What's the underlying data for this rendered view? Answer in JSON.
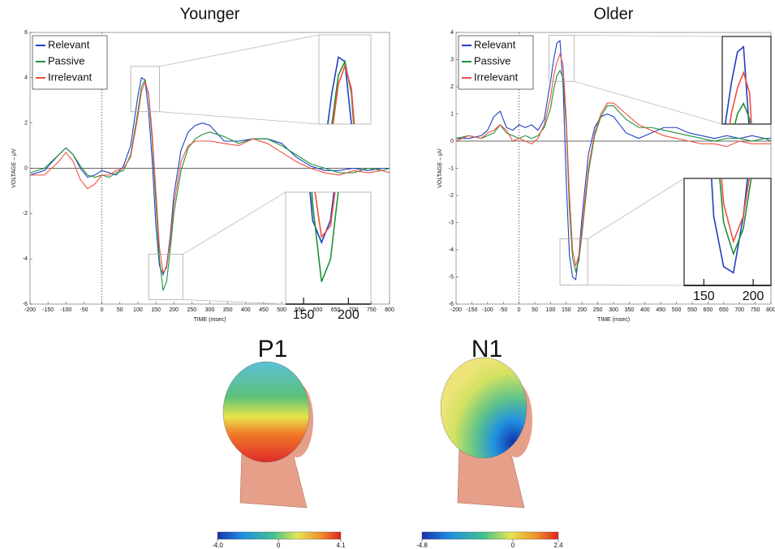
{
  "chart_data": [
    {
      "type": "line",
      "title": "Younger",
      "x_label": "TIME (msec)",
      "y_label": "VOLTAGE – μV",
      "x": [
        -200,
        -160,
        -120,
        -100,
        -80,
        -60,
        -40,
        -20,
        0,
        20,
        40,
        60,
        80,
        100,
        110,
        120,
        130,
        140,
        150,
        160,
        170,
        180,
        190,
        200,
        220,
        240,
        260,
        280,
        300,
        340,
        380,
        420,
        460,
        500,
        540,
        580,
        620,
        660,
        700,
        740,
        780,
        800
      ],
      "series": [
        {
          "name": "Relevant",
          "color": "#2040c0",
          "values": [
            -0.3,
            -0.1,
            0.6,
            0.9,
            0.6,
            0,
            -0.4,
            -0.3,
            -0.1,
            -0.2,
            -0.3,
            0.1,
            1.0,
            3.2,
            4.0,
            3.9,
            2.5,
            0.3,
            -2.5,
            -4.3,
            -4.7,
            -4.3,
            -3.0,
            -1.2,
            0.8,
            1.6,
            1.9,
            2.0,
            1.9,
            1.2,
            1.2,
            1.3,
            1.3,
            1.1,
            0.5,
            0.1,
            -0.1,
            -0.1,
            0.0,
            -0.1,
            0.0,
            0.0
          ]
        },
        {
          "name": "Passive",
          "color": "#20903a",
          "values": [
            -0.2,
            0,
            0.6,
            0.9,
            0.6,
            0.1,
            -0.3,
            -0.4,
            -0.3,
            -0.4,
            -0.2,
            -0.1,
            0.6,
            2.5,
            3.6,
            3.9,
            3.2,
            1.2,
            -1.5,
            -4.0,
            -5.4,
            -5.0,
            -3.6,
            -2.0,
            -0.1,
            0.9,
            1.3,
            1.5,
            1.6,
            1.4,
            1.1,
            1.3,
            1.3,
            1.0,
            0.6,
            0.2,
            0,
            -0.2,
            -0.2,
            0,
            -0.1,
            0
          ]
        },
        {
          "name": "Irrelevant",
          "color": "#f05040",
          "values": [
            -0.3,
            -0.3,
            0.3,
            0.7,
            0.3,
            -0.5,
            -0.9,
            -0.7,
            -0.3,
            -0.3,
            -0.1,
            0,
            0.5,
            2.3,
            3.4,
            3.8,
            3.3,
            1.5,
            -1.0,
            -3.5,
            -4.6,
            -4.4,
            -3.2,
            -1.6,
            0.3,
            1.0,
            1.2,
            1.2,
            1.2,
            1.1,
            1.0,
            1.3,
            1.1,
            0.7,
            0.3,
            0,
            -0.2,
            -0.3,
            -0.1,
            -0.2,
            -0.1,
            -0.2
          ]
        }
      ],
      "xlim": [
        -200,
        800
      ],
      "ylim": [
        -6,
        6
      ],
      "xticks": [
        -200,
        -150,
        -100,
        -50,
        0,
        50,
        100,
        150,
        200,
        250,
        300,
        350,
        400,
        450,
        500,
        550,
        600,
        650,
        700,
        750,
        800
      ],
      "yticks": [
        -6,
        -4,
        -2,
        0,
        2,
        4,
        6
      ],
      "legend": "upper left",
      "insets": [
        {
          "xlim": [
            80,
            160
          ],
          "ylim": [
            2.5,
            4.5
          ]
        },
        {
          "xlim": [
            130,
            225
          ],
          "ylim": [
            -5.8,
            -3.8
          ],
          "xticks": [
            150,
            200
          ]
        }
      ]
    },
    {
      "type": "line",
      "title": "Older",
      "x_label": "TIME (msec)",
      "y_label": "VOLTAGE – μV",
      "x": [
        -200,
        -160,
        -120,
        -100,
        -80,
        -60,
        -40,
        -20,
        0,
        20,
        40,
        60,
        80,
        100,
        110,
        120,
        130,
        140,
        150,
        160,
        170,
        180,
        190,
        200,
        220,
        240,
        260,
        280,
        300,
        340,
        380,
        420,
        460,
        500,
        540,
        580,
        620,
        660,
        700,
        740,
        780,
        800
      ],
      "series": [
        {
          "name": "Relevant",
          "color": "#2040c0",
          "values": [
            0.1,
            0.1,
            0.2,
            0.4,
            0.9,
            1.1,
            0.5,
            0.4,
            0.6,
            0.5,
            0.6,
            0.4,
            0.8,
            2.2,
            3.0,
            3.6,
            3.7,
            2.0,
            -1.5,
            -4.2,
            -5.0,
            -5.1,
            -4.2,
            -2.8,
            -0.5,
            0.5,
            0.9,
            1.0,
            0.9,
            0.3,
            0.1,
            0.3,
            0.5,
            0.5,
            0.3,
            0.2,
            0.1,
            0.2,
            0.1,
            0.2,
            0.1,
            0.1
          ]
        },
        {
          "name": "Passive",
          "color": "#20903a",
          "values": [
            0.1,
            0.2,
            0.1,
            0.2,
            0.3,
            0.6,
            0.3,
            0.2,
            0.1,
            0.2,
            0.1,
            0.2,
            0.5,
            1.2,
            1.9,
            2.4,
            2.6,
            2.3,
            0.5,
            -2.5,
            -4.3,
            -4.8,
            -4.4,
            -3.4,
            -1.2,
            0.2,
            0.9,
            1.3,
            1.3,
            0.8,
            0.5,
            0.5,
            0.4,
            0.3,
            0.2,
            0.1,
            0.0,
            0.1,
            0.1,
            0,
            0.1,
            0.0
          ]
        },
        {
          "name": "Irrelevant",
          "color": "#f05040",
          "values": [
            0.0,
            0.2,
            0.1,
            0.3,
            0.4,
            0.6,
            0.4,
            0.0,
            0.1,
            0.0,
            -0.1,
            0.1,
            0.6,
            1.6,
            2.4,
            2.9,
            3.2,
            2.8,
            0.8,
            -2.0,
            -4.0,
            -4.6,
            -4.2,
            -3.2,
            -1.0,
            0.3,
            1.0,
            1.4,
            1.4,
            1.0,
            0.6,
            0.4,
            0.2,
            0.1,
            0.0,
            -0.1,
            -0.1,
            -0.2,
            0.0,
            -0.1,
            -0.1,
            -0.1
          ]
        }
      ],
      "xlim": [
        -200,
        800
      ],
      "ylim": [
        -6,
        4
      ],
      "xticks": [
        -200,
        -150,
        -100,
        -50,
        0,
        50,
        100,
        150,
        200,
        250,
        300,
        350,
        400,
        450,
        500,
        550,
        600,
        650,
        700,
        750,
        800
      ],
      "yticks": [
        -6,
        -5,
        -4,
        -3,
        -2,
        -1,
        0,
        1,
        2,
        3,
        4
      ],
      "legend": "upper left",
      "insets": [
        {
          "xlim": [
            95,
            175
          ],
          "ylim": [
            2.2,
            3.9
          ]
        },
        {
          "xlim": [
            130,
            218
          ],
          "ylim": [
            -5.3,
            -3.6
          ],
          "xticks": [
            150,
            200
          ]
        }
      ]
    }
  ],
  "topographies": [
    {
      "title": "P1",
      "colorbar_lim": [
        -4,
        4.1
      ],
      "colorbar_ticks": [
        {
          "value": -4,
          "label": "-4.0"
        },
        0,
        4.1
      ]
    },
    {
      "title": "N1",
      "colorbar_lim": [
        -4.8,
        2.4
      ],
      "colorbar_ticks": [
        -4.8,
        0,
        2.4
      ]
    }
  ]
}
